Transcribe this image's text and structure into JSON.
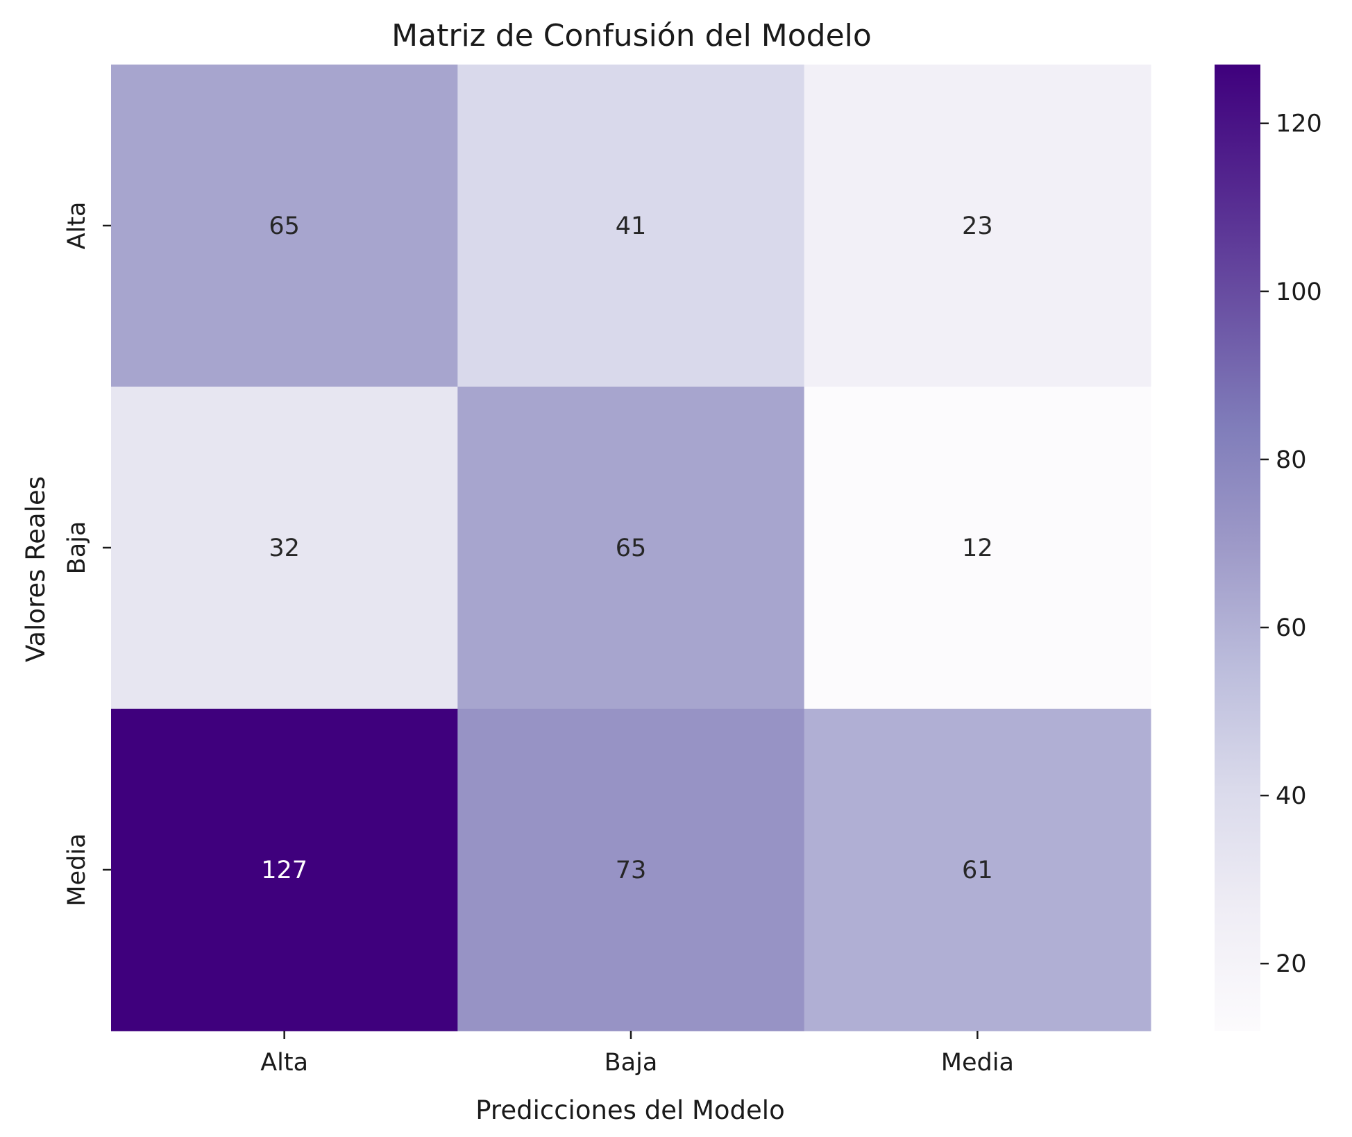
{
  "chart_data": {
    "type": "heatmap",
    "title": "Matriz de Confusión del Modelo",
    "xlabel": "Predicciones del Modelo",
    "ylabel": "Valores Reales",
    "x_categories": [
      "Alta",
      "Baja",
      "Media"
    ],
    "y_categories": [
      "Alta",
      "Baja",
      "Media"
    ],
    "values": [
      [
        65,
        41,
        23
      ],
      [
        32,
        65,
        12
      ],
      [
        127,
        73,
        61
      ]
    ],
    "colorbar": {
      "min": 12,
      "max": 127,
      "ticks": [
        20,
        40,
        60,
        80,
        100,
        120
      ],
      "colormap": "Purples",
      "colors": [
        "#fcfbfd",
        "#efedf5",
        "#dadaeb",
        "#bcbddc",
        "#9e9ac8",
        "#807dba",
        "#6a51a3",
        "#54278f",
        "#3f007d"
      ]
    },
    "annotation_colors": {
      "light": "#ffffff",
      "dark": "#262626"
    }
  }
}
